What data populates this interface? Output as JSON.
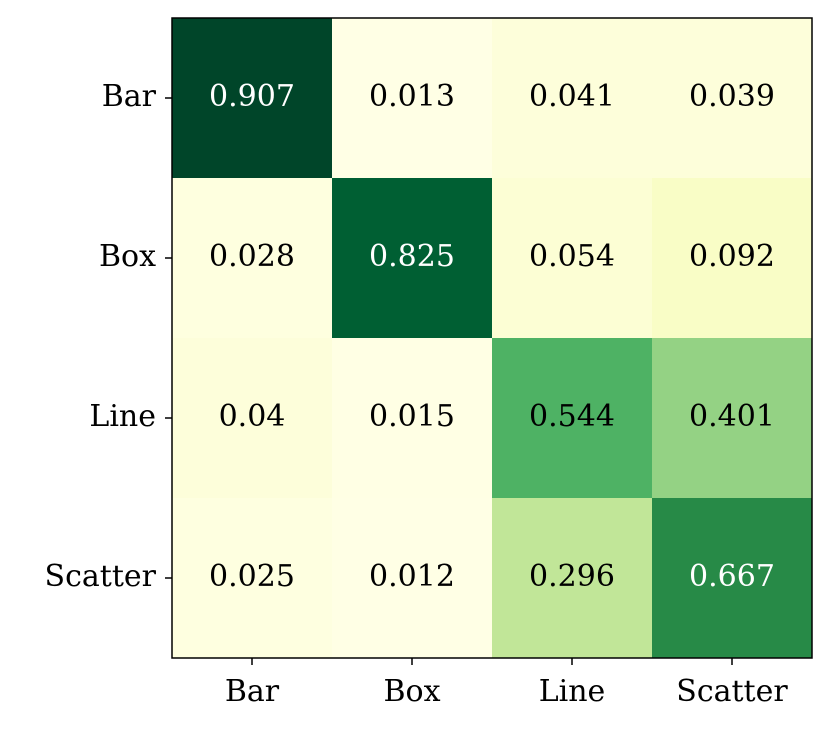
{
  "chart_data": {
    "type": "heatmap",
    "x_categories": [
      "Bar",
      "Box",
      "Line",
      "Scatter"
    ],
    "y_categories": [
      "Bar",
      "Box",
      "Line",
      "Scatter"
    ],
    "values": [
      [
        0.907,
        0.013,
        0.041,
        0.039
      ],
      [
        0.028,
        0.825,
        0.054,
        0.092
      ],
      [
        0.04,
        0.015,
        0.544,
        0.401
      ],
      [
        0.025,
        0.012,
        0.296,
        0.667
      ]
    ],
    "colormap": [
      "#ffffe5",
      "#f7fcb9",
      "#d9f0a3",
      "#addd8e",
      "#78c679",
      "#41ab5d",
      "#238443",
      "#006837",
      "#004529"
    ]
  }
}
